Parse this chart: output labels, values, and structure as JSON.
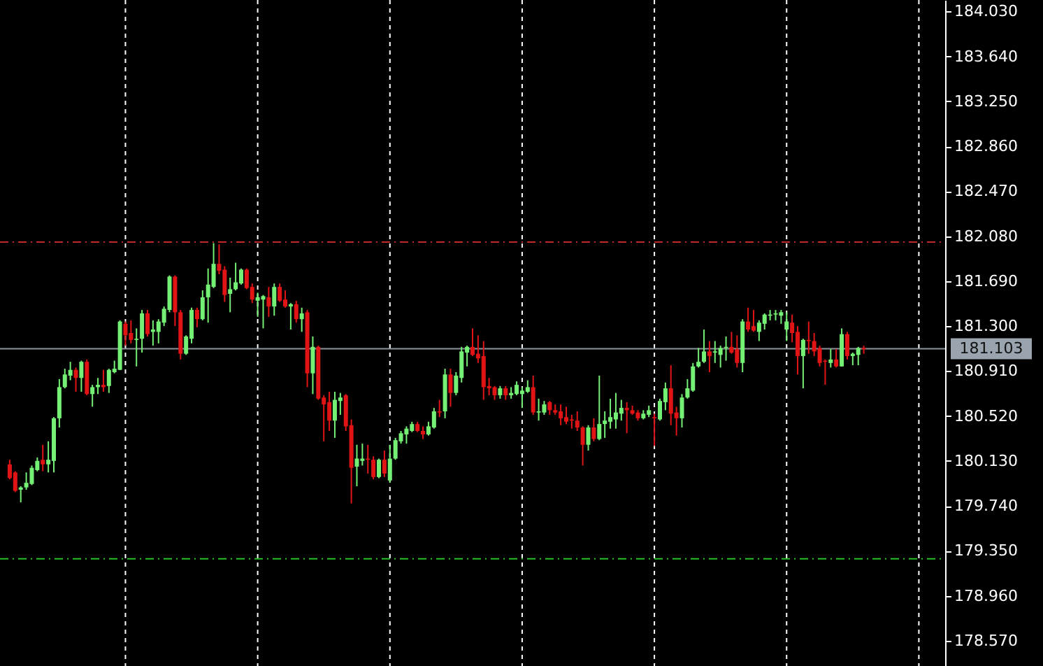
{
  "chart_data": {
    "type": "candlestick",
    "categories": [
      null,
      null,
      null,
      null,
      null,
      null,
      null,
      null,
      null,
      null,
      null,
      null,
      null,
      null,
      null,
      null,
      null,
      null,
      null,
      null,
      null,
      null,
      null,
      null,
      null,
      null,
      null,
      null,
      null,
      null,
      null,
      null,
      null,
      null,
      null,
      null,
      null,
      null,
      null,
      null,
      null,
      null,
      null,
      null,
      null,
      null,
      null,
      null,
      null,
      null,
      null,
      null,
      null,
      null,
      null,
      null,
      null,
      null,
      null,
      null,
      null,
      null,
      null,
      null,
      null,
      null,
      null,
      null,
      null,
      null,
      null,
      null,
      null,
      null,
      null,
      null,
      null,
      null,
      null,
      null,
      null,
      null,
      null,
      null,
      null,
      null,
      null,
      null,
      null,
      null,
      null,
      null,
      null,
      null,
      null,
      null,
      null,
      null,
      null,
      null,
      null,
      null,
      null,
      null,
      null,
      null,
      null,
      null,
      null,
      null,
      null,
      null,
      null,
      null,
      null,
      null,
      null,
      null,
      null,
      null,
      null,
      null,
      null,
      null,
      null,
      null,
      null,
      null,
      null,
      null,
      null,
      null,
      null,
      null,
      null,
      null,
      null,
      null,
      null,
      null,
      null,
      null,
      null,
      null,
      null,
      null,
      null,
      null,
      null,
      null,
      null,
      null,
      null,
      null,
      null,
      null,
      null,
      null,
      null,
      null,
      null,
      null,
      null,
      null,
      null,
      null,
      null,
      null,
      null
    ],
    "ohlc": [
      [
        180.1,
        180.14,
        179.97,
        179.98
      ],
      [
        180.03,
        180.04,
        179.86,
        179.87
      ],
      [
        179.88,
        179.91,
        179.77,
        179.9
      ],
      [
        179.9,
        180.03,
        179.88,
        179.94
      ],
      [
        179.93,
        180.09,
        179.92,
        180.07
      ],
      [
        180.05,
        180.16,
        180.04,
        180.13
      ],
      [
        180.14,
        180.27,
        180.04,
        180.1
      ],
      [
        180.1,
        180.3,
        180.03,
        180.14
      ],
      [
        180.13,
        180.51,
        180.03,
        180.5
      ],
      [
        180.5,
        180.84,
        180.42,
        180.77
      ],
      [
        180.77,
        180.93,
        180.76,
        180.88
      ],
      [
        180.87,
        180.99,
        180.83,
        180.92
      ],
      [
        180.92,
        180.94,
        180.73,
        180.85
      ],
      [
        180.85,
        181.0,
        180.73,
        180.99
      ],
      [
        180.99,
        181.01,
        180.7,
        180.71
      ],
      [
        180.71,
        180.79,
        180.6,
        180.77
      ],
      [
        180.77,
        180.85,
        180.71,
        180.79
      ],
      [
        180.79,
        180.92,
        180.73,
        180.77
      ],
      [
        180.78,
        180.93,
        180.72,
        180.92
      ],
      [
        180.9,
        181.0,
        180.89,
        180.93
      ],
      [
        180.92,
        181.35,
        180.92,
        181.34
      ],
      [
        181.32,
        181.34,
        181.13,
        181.22
      ],
      [
        181.24,
        181.35,
        181.15,
        181.18
      ],
      [
        181.18,
        181.28,
        180.95,
        181.19
      ],
      [
        181.19,
        181.44,
        181.07,
        181.41
      ],
      [
        181.41,
        181.44,
        181.21,
        181.23
      ],
      [
        181.25,
        181.35,
        181.13,
        181.27
      ],
      [
        181.25,
        181.36,
        181.15,
        181.34
      ],
      [
        181.33,
        181.47,
        181.3,
        181.45
      ],
      [
        181.44,
        181.74,
        181.42,
        181.73
      ],
      [
        181.73,
        181.74,
        181.3,
        181.42
      ],
      [
        181.42,
        181.44,
        181.01,
        181.06
      ],
      [
        181.06,
        181.22,
        181.05,
        181.21
      ],
      [
        181.19,
        181.46,
        181.15,
        181.44
      ],
      [
        181.44,
        181.46,
        181.29,
        181.36
      ],
      [
        181.36,
        181.61,
        181.35,
        181.55
      ],
      [
        181.55,
        181.8,
        181.33,
        181.66
      ],
      [
        181.64,
        182.02,
        181.63,
        181.84
      ],
      [
        181.84,
        182.01,
        181.75,
        181.78
      ],
      [
        181.79,
        181.82,
        181.51,
        181.57
      ],
      [
        181.58,
        181.72,
        181.42,
        181.62
      ],
      [
        181.62,
        181.85,
        181.61,
        181.68
      ],
      [
        181.67,
        181.8,
        181.66,
        181.79
      ],
      [
        181.79,
        181.8,
        181.62,
        181.63
      ],
      [
        181.64,
        181.67,
        181.5,
        181.53
      ],
      [
        181.52,
        181.59,
        181.38,
        181.55
      ],
      [
        181.53,
        181.57,
        181.28,
        181.56
      ],
      [
        181.55,
        181.64,
        181.38,
        181.47
      ],
      [
        181.47,
        181.67,
        181.39,
        181.64
      ],
      [
        181.64,
        181.67,
        181.51,
        181.52
      ],
      [
        181.53,
        181.61,
        181.46,
        181.47
      ],
      [
        181.47,
        181.5,
        181.27,
        181.49
      ],
      [
        181.49,
        181.52,
        181.33,
        181.36
      ],
      [
        181.36,
        181.46,
        181.25,
        181.41
      ],
      [
        181.42,
        181.44,
        180.77,
        180.89
      ],
      [
        180.89,
        181.21,
        180.71,
        181.12
      ],
      [
        181.12,
        181.13,
        180.66,
        180.67
      ],
      [
        180.68,
        180.7,
        180.3,
        180.62
      ],
      [
        180.64,
        180.73,
        180.39,
        180.48
      ],
      [
        180.48,
        180.73,
        180.33,
        180.66
      ],
      [
        180.65,
        180.72,
        180.53,
        180.68
      ],
      [
        180.7,
        180.71,
        180.39,
        180.43
      ],
      [
        180.44,
        180.49,
        179.76,
        180.07
      ],
      [
        180.08,
        180.27,
        179.91,
        180.15
      ],
      [
        180.13,
        180.28,
        180.09,
        180.15
      ],
      [
        180.15,
        180.27,
        180.02,
        180.14
      ],
      [
        180.14,
        180.17,
        179.97,
        179.99
      ],
      [
        179.99,
        180.15,
        179.98,
        180.14
      ],
      [
        180.14,
        180.22,
        179.99,
        180.02
      ],
      [
        179.96,
        180.27,
        179.94,
        180.15
      ],
      [
        180.15,
        180.33,
        180.14,
        180.31
      ],
      [
        180.3,
        180.39,
        180.28,
        180.37
      ],
      [
        180.36,
        180.43,
        180.28,
        180.41
      ],
      [
        180.39,
        180.47,
        180.38,
        180.45
      ],
      [
        180.45,
        180.47,
        180.38,
        180.39
      ],
      [
        180.39,
        180.43,
        180.32,
        180.36
      ],
      [
        180.36,
        180.47,
        180.35,
        180.43
      ],
      [
        180.42,
        180.59,
        180.41,
        180.56
      ],
      [
        180.56,
        180.66,
        180.51,
        180.55
      ],
      [
        180.56,
        180.93,
        180.5,
        180.88
      ],
      [
        180.88,
        180.93,
        180.6,
        180.72
      ],
      [
        180.72,
        180.9,
        180.7,
        180.87
      ],
      [
        180.85,
        181.12,
        180.81,
        181.08
      ],
      [
        181.07,
        181.13,
        180.95,
        181.12
      ],
      [
        181.12,
        181.28,
        181.04,
        181.05
      ],
      [
        181.06,
        181.22,
        180.98,
        181.02
      ],
      [
        181.04,
        181.17,
        180.66,
        180.77
      ],
      [
        180.78,
        180.85,
        180.7,
        180.76
      ],
      [
        180.77,
        180.78,
        180.66,
        180.7
      ],
      [
        180.7,
        180.78,
        180.67,
        180.76
      ],
      [
        180.76,
        180.78,
        180.66,
        180.7
      ],
      [
        180.7,
        180.77,
        180.67,
        180.72
      ],
      [
        180.71,
        180.82,
        180.7,
        180.79
      ],
      [
        180.71,
        180.77,
        180.59,
        180.74
      ],
      [
        180.73,
        180.83,
        180.72,
        180.77
      ],
      [
        180.77,
        180.87,
        180.53,
        180.55
      ],
      [
        180.55,
        180.67,
        180.48,
        180.56
      ],
      [
        180.55,
        180.65,
        180.53,
        180.62
      ],
      [
        180.64,
        180.65,
        180.53,
        180.57
      ],
      [
        180.57,
        180.62,
        180.53,
        180.55
      ],
      [
        180.56,
        180.62,
        180.44,
        180.5
      ],
      [
        180.51,
        180.6,
        180.45,
        180.47
      ],
      [
        180.49,
        180.53,
        180.41,
        180.48
      ],
      [
        180.48,
        180.56,
        180.39,
        180.42
      ],
      [
        180.42,
        180.43,
        180.09,
        180.27
      ],
      [
        180.27,
        180.44,
        180.22,
        180.42
      ],
      [
        180.42,
        180.5,
        180.3,
        180.32
      ],
      [
        180.32,
        180.87,
        180.31,
        180.45
      ],
      [
        180.45,
        180.56,
        180.33,
        180.48
      ],
      [
        180.47,
        180.67,
        180.41,
        180.51
      ],
      [
        180.49,
        180.72,
        180.41,
        180.55
      ],
      [
        180.54,
        180.66,
        180.48,
        180.59
      ],
      [
        180.59,
        180.64,
        180.37,
        180.57
      ],
      [
        180.57,
        180.61,
        180.53,
        180.54
      ],
      [
        180.55,
        180.57,
        180.48,
        180.5
      ],
      [
        180.5,
        180.57,
        180.49,
        180.54
      ],
      [
        180.53,
        180.61,
        180.51,
        180.57
      ],
      [
        180.51,
        180.54,
        180.26,
        180.5
      ],
      [
        180.49,
        180.67,
        180.48,
        180.65
      ],
      [
        180.64,
        180.81,
        180.57,
        180.76
      ],
      [
        180.76,
        180.96,
        180.44,
        180.54
      ],
      [
        180.55,
        180.6,
        180.35,
        180.5
      ],
      [
        180.5,
        180.71,
        180.42,
        180.68
      ],
      [
        180.68,
        180.84,
        180.67,
        180.76
      ],
      [
        180.74,
        180.98,
        180.73,
        180.95
      ],
      [
        180.95,
        181.11,
        180.94,
        180.99
      ],
      [
        180.99,
        181.27,
        180.98,
        181.08
      ],
      [
        181.08,
        181.17,
        180.9,
        181.04
      ],
      [
        181.07,
        181.17,
        180.98,
        181.08
      ],
      [
        181.05,
        181.13,
        180.94,
        181.11
      ],
      [
        181.11,
        181.21,
        181.0,
        181.12
      ],
      [
        181.12,
        181.25,
        181.06,
        181.07
      ],
      [
        181.1,
        181.22,
        180.94,
        180.98
      ],
      [
        180.98,
        181.36,
        180.9,
        181.34
      ],
      [
        181.34,
        181.46,
        181.25,
        181.27
      ],
      [
        181.3,
        181.44,
        181.25,
        181.26
      ],
      [
        181.25,
        181.35,
        181.17,
        181.33
      ],
      [
        181.32,
        181.41,
        181.27,
        181.4
      ],
      [
        181.39,
        181.44,
        181.35,
        181.4
      ],
      [
        181.4,
        181.44,
        181.35,
        181.41
      ],
      [
        181.39,
        181.44,
        181.32,
        181.42
      ],
      [
        181.27,
        181.42,
        181.17,
        181.34
      ],
      [
        181.33,
        181.4,
        181.16,
        181.24
      ],
      [
        181.25,
        181.3,
        180.88,
        181.04
      ],
      [
        181.04,
        181.19,
        180.76,
        181.18
      ],
      [
        181.18,
        181.34,
        181.06,
        181.17
      ],
      [
        181.17,
        181.24,
        181.04,
        181.08
      ],
      [
        181.11,
        181.13,
        180.95,
        180.98
      ],
      [
        181.0,
        181.01,
        180.79,
        180.99
      ],
      [
        180.98,
        181.1,
        180.94,
        181.01
      ],
      [
        181.01,
        181.1,
        180.94,
        180.95
      ],
      [
        180.95,
        181.28,
        180.95,
        181.23
      ],
      [
        181.23,
        181.25,
        181.01,
        181.04
      ],
      [
        181.04,
        181.07,
        180.96,
        181.06
      ],
      [
        181.05,
        181.12,
        180.96,
        181.11
      ],
      [
        181.11,
        181.13,
        181.06,
        181.1
      ],
      null,
      null,
      null,
      null,
      null,
      null,
      null,
      null,
      null,
      null,
      null,
      null,
      null
    ],
    "colors": [
      "#e01414",
      "#e01414",
      "#74f074",
      "#74f074",
      "#74f074",
      "#74f074",
      "#e01414",
      "#74f074",
      "#74f074",
      "#74f074",
      "#74f074",
      "#74f074",
      "#e01414",
      "#74f074",
      "#e01414",
      "#74f074",
      "#74f074",
      "#e01414",
      "#74f074",
      "#74f074",
      "#74f074",
      "#e01414",
      "#e01414",
      "#74f074",
      "#74f074",
      "#e01414",
      "#74f074",
      "#74f074",
      "#74f074",
      "#74f074",
      "#e01414",
      "#e01414",
      "#74f074",
      "#74f074",
      "#e01414",
      "#74f074",
      "#74f074",
      "#74f074",
      "#e01414",
      "#e01414",
      "#74f074",
      "#74f074",
      "#74f074",
      "#e01414",
      "#e01414",
      "#74f074",
      "#74f074",
      "#e01414",
      "#74f074",
      "#e01414",
      "#e01414",
      "#74f074",
      "#e01414",
      "#74f074",
      "#e01414",
      "#74f074",
      "#e01414",
      "#e01414",
      "#e01414",
      "#74f074",
      "#74f074",
      "#e01414",
      "#e01414",
      "#74f074",
      "#74f074",
      "#e01414",
      "#e01414",
      "#74f074",
      "#e01414",
      "#74f074",
      "#74f074",
      "#74f074",
      "#74f074",
      "#74f074",
      "#e01414",
      "#e01414",
      "#74f074",
      "#74f074",
      "#e01414",
      "#74f074",
      "#e01414",
      "#74f074",
      "#74f074",
      "#74f074",
      "#e01414",
      "#e01414",
      "#e01414",
      "#e01414",
      "#e01414",
      "#74f074",
      "#e01414",
      "#74f074",
      "#74f074",
      "#74f074",
      "#74f074",
      "#e01414",
      "#74f074",
      "#74f074",
      "#e01414",
      "#e01414",
      "#e01414",
      "#e01414",
      "#e01414",
      "#e01414",
      "#e01414",
      "#74f074",
      "#e01414",
      "#74f074",
      "#74f074",
      "#74f074",
      "#74f074",
      "#74f074",
      "#e01414",
      "#e01414",
      "#e01414",
      "#74f074",
      "#74f074",
      "#e01414",
      "#74f074",
      "#74f074",
      "#e01414",
      "#e01414",
      "#74f074",
      "#74f074",
      "#74f074",
      "#74f074",
      "#74f074",
      "#e01414",
      "#74f074",
      "#74f074",
      "#74f074",
      "#e01414",
      "#e01414",
      "#74f074",
      "#e01414",
      "#e01414",
      "#74f074",
      "#74f074",
      "#74f074",
      "#74f074",
      "#74f074",
      "#74f074",
      "#e01414",
      "#e01414",
      "#74f074",
      "#e01414",
      "#e01414",
      "#e01414",
      "#e01414",
      "#74f074",
      "#e01414",
      "#74f074",
      "#e01414",
      "#74f074",
      "#74f074",
      "#e01414",
      null,
      null,
      null,
      null,
      null,
      null,
      null,
      null,
      null,
      null,
      null,
      null,
      null
    ],
    "ylim": [
      178.35,
      184.13
    ],
    "yticks": [
      {
        "value": 178.57,
        "label": "178.570"
      },
      {
        "value": 178.96,
        "label": "178.960"
      },
      {
        "value": 179.35,
        "label": "179.350"
      },
      {
        "value": 179.74,
        "label": "179.740"
      },
      {
        "value": 180.13,
        "label": "180.130"
      },
      {
        "value": 180.52,
        "label": "180.520"
      },
      {
        "value": 180.91,
        "label": "180.910"
      },
      {
        "value": 181.3,
        "label": "181.300"
      },
      {
        "value": 181.69,
        "label": "181.690"
      },
      {
        "value": 182.08,
        "label": "182.080"
      },
      {
        "value": 182.47,
        "label": "182.470"
      },
      {
        "value": 182.86,
        "label": "182.860"
      },
      {
        "value": 183.25,
        "label": "183.250"
      },
      {
        "value": 183.64,
        "label": "183.640"
      },
      {
        "value": 184.03,
        "label": "184.030"
      }
    ],
    "ref_lines": [
      {
        "axis": "y",
        "value": 182.03,
        "color": "#c02828",
        "line_style": "dashdot"
      },
      {
        "axis": "y",
        "value": 179.28,
        "color": "#28c028",
        "line_style": "dashdot"
      },
      {
        "axis": "y",
        "value": 181.103,
        "label": "181.103",
        "color": "#8c949c",
        "line_style": "solid"
      }
    ],
    "tick_labels": "y"
  }
}
